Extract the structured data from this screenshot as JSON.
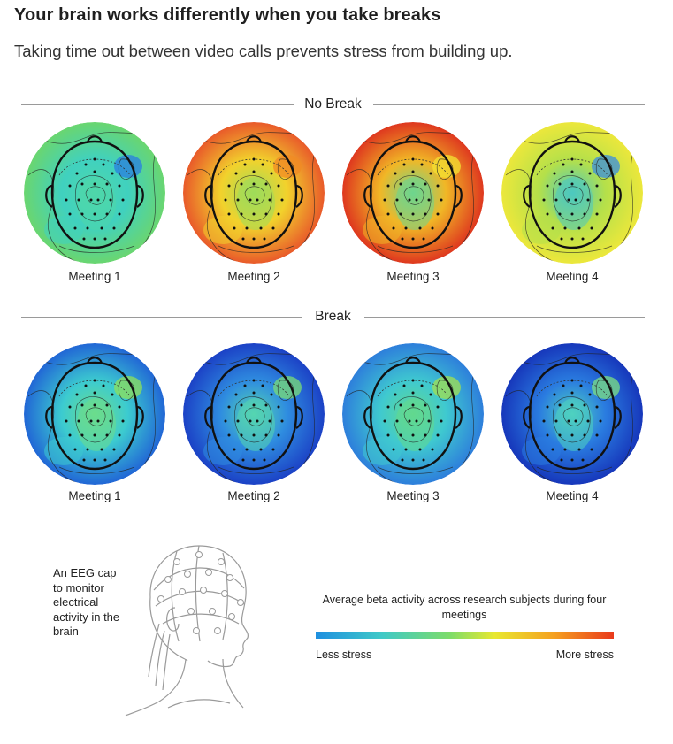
{
  "header": {
    "title": "Your brain works differently when you take breaks",
    "subtitle": "Taking time out between video calls prevents stress from building up."
  },
  "sections": [
    {
      "label": "No Break",
      "maps": [
        {
          "label": "Meeting 1",
          "stress_level": "low-moderate",
          "colors": {
            "edge": "#6dd66a",
            "mid": "#40d1bf",
            "core": "#4fd7a9",
            "hot": "#2a7ee0"
          }
        },
        {
          "label": "Meeting 2",
          "stress_level": "high",
          "colors": {
            "edge": "#e8512a",
            "mid": "#f2d22c",
            "core": "#9fdc5a",
            "hot": "#f08a24"
          }
        },
        {
          "label": "Meeting 3",
          "stress_level": "very-high",
          "colors": {
            "edge": "#dd2e1e",
            "mid": "#f1b726",
            "core": "#6ed68e",
            "hot": "#f3e333"
          }
        },
        {
          "label": "Meeting 4",
          "stress_level": "moderate",
          "colors": {
            "edge": "#f0e83a",
            "mid": "#b4e04a",
            "core": "#4cc9c0",
            "hot": "#3a8ee0"
          }
        }
      ]
    },
    {
      "label": "Break",
      "maps": [
        {
          "label": "Meeting 1",
          "stress_level": "low",
          "colors": {
            "edge": "#1f5fd6",
            "mid": "#3ccbd0",
            "core": "#6bdc8c",
            "hot": "#8fe05a"
          }
        },
        {
          "label": "Meeting 2",
          "stress_level": "very-low",
          "colors": {
            "edge": "#1a3cc4",
            "mid": "#2f8de0",
            "core": "#55d6b0",
            "hot": "#7bdc74"
          }
        },
        {
          "label": "Meeting 3",
          "stress_level": "low",
          "colors": {
            "edge": "#2c79dc",
            "mid": "#3fc9d0",
            "core": "#62d98e",
            "hot": "#a3e04f"
          }
        },
        {
          "label": "Meeting 4",
          "stress_level": "very-low",
          "colors": {
            "edge": "#1532b8",
            "mid": "#2a7ce0",
            "core": "#4fd2c0",
            "hot": "#7ee080"
          }
        }
      ]
    }
  ],
  "illustration": {
    "caption": "An EEG cap to monitor electrical activity in the brain",
    "icon": "eeg-cap-head-illustration"
  },
  "legend": {
    "title": "Average beta activity across research subjects during four meetings",
    "low_label": "Less stress",
    "high_label": "More stress",
    "gradient": [
      "#1e8fe0",
      "#3fc9c8",
      "#7ddc6a",
      "#e8e830",
      "#f5a020",
      "#e93a1c"
    ]
  }
}
